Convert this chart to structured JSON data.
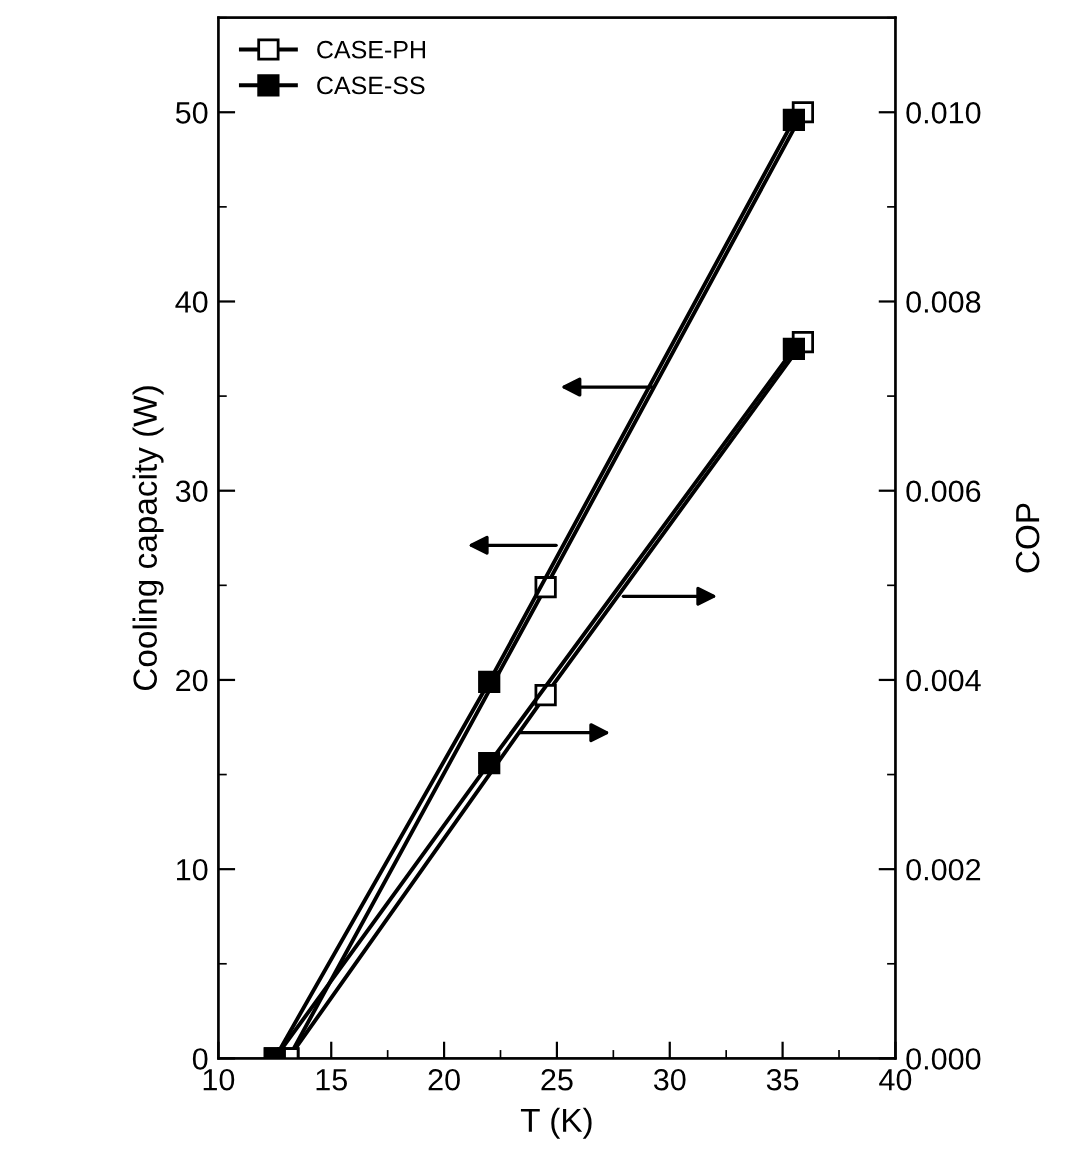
{
  "chart_data": {
    "type": "line",
    "xlabel": "T (K)",
    "ylabel": "Cooling capacity (W)",
    "y2label": "COP",
    "xlim": [
      10,
      40
    ],
    "xticks": [
      10,
      15,
      20,
      25,
      30,
      35,
      40
    ],
    "ylim": [
      0,
      55
    ],
    "yticks": [
      0,
      10,
      20,
      30,
      40,
      50
    ],
    "y2lim": [
      0,
      0.011
    ],
    "y2ticks": [
      {
        "value": 0,
        "label": "0.000"
      },
      {
        "value": 0.002,
        "label": "0.002"
      },
      {
        "value": 0.004,
        "label": "0.004"
      },
      {
        "value": 0.006,
        "label": "0.006"
      },
      {
        "value": 0.008,
        "label": "0.008"
      },
      {
        "value": 0.01,
        "label": "0.010"
      }
    ],
    "legend": "top left",
    "grid": false,
    "series": [
      {
        "name": "CASE-PH",
        "color": "#000000",
        "marker": "square",
        "x": [
          13.1,
          24.5,
          35.9
        ],
        "values": [
          0,
          24.9,
          50.0
        ]
      },
      {
        "name": "CASE-SS",
        "color": "#000000",
        "marker": "square",
        "x": [
          12.5,
          22.0,
          35.5
        ],
        "values": [
          0,
          19.9,
          49.6
        ]
      },
      {
        "color": "#000000",
        "marker": "square",
        "axis": "y2",
        "x": [
          13.1,
          24.5,
          35.9
        ],
        "values": [
          0,
          0.00384,
          0.00757
        ]
      },
      {
        "color": "#000000",
        "marker": "square",
        "axis": "y2",
        "x": [
          12.5,
          22.0,
          35.5
        ],
        "values": [
          0,
          0.00312,
          0.0075
        ]
      }
    ]
  }
}
